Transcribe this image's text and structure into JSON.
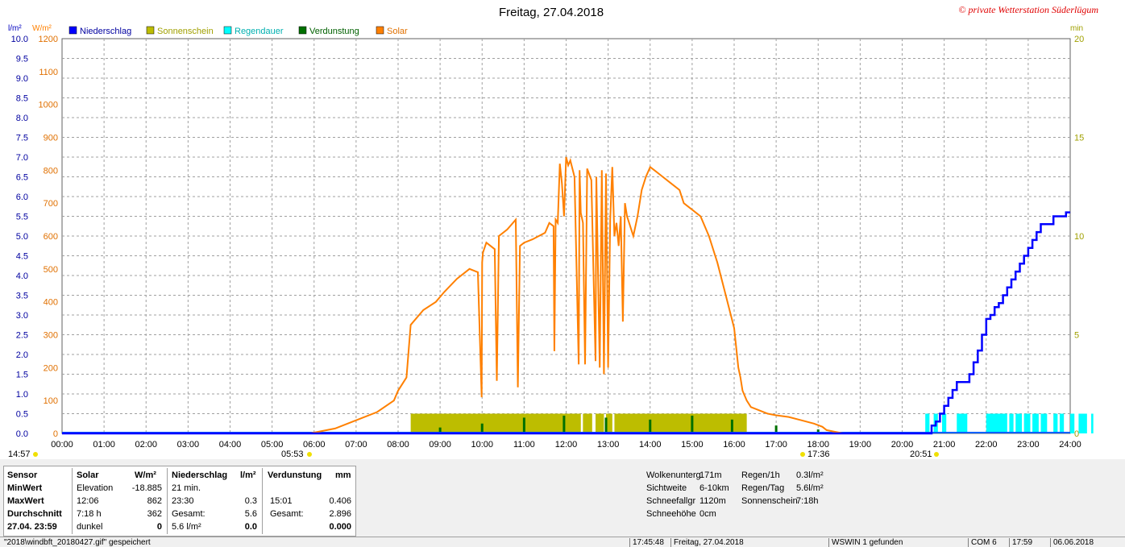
{
  "title": "Freitag, 27.04.2018",
  "copyright": "© private Wetterstation Süderlügum",
  "legend": [
    {
      "label": "Niederschlag",
      "color": "#0000ff"
    },
    {
      "label": "Sonnenschein",
      "color": "#bdbd00"
    },
    {
      "label": "Regendauer",
      "color": "#00ffff"
    },
    {
      "label": "Verdunstung",
      "color": "#007000"
    },
    {
      "label": "Solar",
      "color": "#ff8000"
    }
  ],
  "axis_units": {
    "rain": "l/m²",
    "solar": "W/m²",
    "minutes": "min"
  },
  "sun_markers": {
    "first": "14:57",
    "sunrise": "05:53",
    "sunset": "17:36",
    "last": "20:51"
  },
  "chart_data": {
    "type": "line",
    "title": "Freitag, 27.04.2018",
    "x_ticks": [
      "00:00",
      "01:00",
      "02:00",
      "03:00",
      "04:00",
      "05:00",
      "06:00",
      "07:00",
      "08:00",
      "09:00",
      "10:00",
      "11:00",
      "12:00",
      "13:00",
      "14:00",
      "15:00",
      "16:00",
      "17:00",
      "18:00",
      "19:00",
      "20:00",
      "21:00",
      "22:00",
      "23:00",
      "24:00"
    ],
    "xlim": [
      0,
      24
    ],
    "axes": {
      "rain": {
        "unit": "l/m²",
        "ylim": [
          0,
          10
        ],
        "ticks": [
          "0.0",
          "0.5",
          "1.0",
          "1.5",
          "2.0",
          "2.5",
          "3.0",
          "3.5",
          "4.0",
          "4.5",
          "5.0",
          "5.5",
          "6.0",
          "6.5",
          "7.0",
          "7.5",
          "8.0",
          "8.5",
          "9.0",
          "9.5",
          "10.0"
        ]
      },
      "solar": {
        "unit": "W/m²",
        "ylim": [
          0,
          1200
        ],
        "ticks": [
          "0",
          "100",
          "200",
          "300",
          "400",
          "500",
          "600",
          "700",
          "800",
          "900",
          "1000",
          "1100",
          "1200"
        ]
      },
      "minutes": {
        "unit": "min",
        "ylim": [
          0,
          20
        ],
        "ticks": [
          "0",
          "5",
          "10",
          "15",
          "20"
        ]
      }
    },
    "series": [
      {
        "name": "Solar",
        "axis": "solar",
        "color": "#ff8000",
        "x": [
          5.9,
          6.5,
          7.0,
          7.5,
          7.9,
          8.0,
          8.2,
          8.3,
          8.6,
          8.9,
          9.1,
          9.4,
          9.7,
          9.9,
          9.99,
          10.0,
          10.02,
          10.1,
          10.3,
          10.35,
          10.4,
          10.6,
          10.8,
          10.85,
          10.9,
          11.0,
          11.2,
          11.5,
          11.6,
          11.7,
          11.72,
          11.75,
          11.8,
          11.85,
          11.9,
          11.95,
          12.0,
          12.05,
          12.1,
          12.2,
          12.3,
          12.32,
          12.35,
          12.4,
          12.45,
          12.5,
          12.6,
          12.7,
          12.72,
          12.8,
          12.85,
          12.9,
          12.95,
          13.0,
          13.05,
          13.1,
          13.15,
          13.2,
          13.25,
          13.3,
          13.35,
          13.4,
          13.45,
          13.5,
          13.6,
          13.7,
          13.8,
          13.9,
          14.0,
          14.1,
          14.2,
          14.3,
          14.5,
          14.7,
          14.8,
          15.0,
          15.2,
          15.4,
          15.6,
          15.8,
          16.0,
          16.1,
          16.15,
          16.2,
          16.3,
          16.4,
          16.6,
          16.8,
          17.0,
          17.3,
          17.6,
          17.9,
          18.1,
          18.2,
          18.4,
          18.6,
          18.9,
          19.2,
          19.5,
          19.8,
          20.2,
          20.5
        ],
        "values": [
          0,
          15,
          40,
          65,
          100,
          130,
          170,
          330,
          375,
          400,
          430,
          470,
          500,
          490,
          110,
          520,
          550,
          580,
          560,
          160,
          600,
          620,
          650,
          140,
          570,
          580,
          590,
          610,
          640,
          630,
          250,
          650,
          640,
          820,
          760,
          660,
          840,
          815,
          830,
          780,
          210,
          800,
          670,
          640,
          210,
          805,
          770,
          220,
          780,
          200,
          800,
          180,
          790,
          200,
          650,
          810,
          600,
          640,
          570,
          660,
          340,
          700,
          660,
          640,
          600,
          660,
          740,
          780,
          810,
          800,
          790,
          780,
          760,
          740,
          700,
          680,
          660,
          600,
          520,
          420,
          320,
          200,
          170,
          130,
          100,
          80,
          70,
          60,
          55,
          50,
          40,
          30,
          20,
          10,
          5,
          0,
          0,
          0,
          0,
          0,
          0,
          0
        ]
      },
      {
        "name": "Niederschlag",
        "axis": "rain",
        "color": "#0000ff",
        "x": [
          0,
          20.6,
          20.7,
          20.8,
          20.9,
          21.0,
          21.1,
          21.2,
          21.3,
          21.5,
          21.6,
          21.7,
          21.8,
          21.9,
          22.0,
          22.1,
          22.2,
          22.3,
          22.4,
          22.5,
          22.6,
          22.7,
          22.8,
          22.9,
          23.0,
          23.1,
          23.2,
          23.3,
          23.4,
          23.5,
          23.6,
          23.7,
          23.8,
          23.9,
          24.0
        ],
        "values": [
          0,
          0,
          0.2,
          0.3,
          0.5,
          0.7,
          0.9,
          1.1,
          1.3,
          1.3,
          1.5,
          1.8,
          2.1,
          2.5,
          2.9,
          3.0,
          3.2,
          3.3,
          3.5,
          3.7,
          3.9,
          4.1,
          4.3,
          4.5,
          4.7,
          4.9,
          5.1,
          5.3,
          5.3,
          5.3,
          5.5,
          5.5,
          5.5,
          5.6,
          5.6
        ]
      },
      {
        "name": "Sonnenschein",
        "axis": "minutes",
        "color": "#bdbd00",
        "intervals": [
          [
            8.3,
            12.35
          ],
          [
            12.4,
            12.62
          ],
          [
            12.7,
            12.9
          ],
          [
            12.95,
            13.1
          ],
          [
            13.15,
            16.3
          ]
        ],
        "level": 1
      },
      {
        "name": "Regendauer",
        "axis": "minutes",
        "color": "#00ffff",
        "intervals": [
          [
            20.55,
            20.65
          ],
          [
            20.75,
            20.85
          ],
          [
            20.95,
            21.05
          ],
          [
            21.3,
            21.55
          ],
          [
            22.0,
            22.5
          ],
          [
            22.55,
            22.65
          ],
          [
            22.7,
            22.85
          ],
          [
            22.9,
            23.05
          ],
          [
            23.1,
            23.25
          ],
          [
            23.3,
            23.45
          ],
          [
            23.6,
            23.7
          ],
          [
            23.75,
            23.85
          ],
          [
            24.0,
            24.1
          ],
          [
            24.2,
            24.4
          ],
          [
            24.5,
            24.55
          ]
        ],
        "level": 1
      },
      {
        "name": "Verdunstung",
        "axis": "minutes",
        "color": "#007000",
        "x": [
          9.0,
          10.0,
          11.0,
          11.95,
          12.95,
          14.0,
          15.0,
          15.95,
          17.0,
          18.0
        ],
        "values": [
          0.3,
          0.5,
          0.8,
          0.9,
          0.8,
          0.7,
          0.9,
          0.7,
          0.4,
          0.2
        ]
      }
    ]
  },
  "stats": {
    "headers": [
      "Sensor",
      "Solar",
      "W/m²",
      "Niederschlag",
      "l/m²",
      "Verdunstung",
      "mm"
    ],
    "rows": [
      {
        "label": "MinWert",
        "solar_a": "Elevation",
        "solar_b": "-18.885",
        "rain_a": "21 min.",
        "rain_b": "",
        "evap_a": "",
        "evap_b": ""
      },
      {
        "label": "MaxWert",
        "solar_a": "12:06",
        "solar_b": "862",
        "rain_a": "23:30",
        "rain_b": "0.3",
        "evap_a": "15:01",
        "evap_b": "0.406"
      },
      {
        "label": "Durchschnitt",
        "solar_a": "7:18 h",
        "solar_b": "362",
        "rain_a": "Gesamt:",
        "rain_b": "5.6",
        "evap_a": "Gesamt:",
        "evap_b": "2.896"
      },
      {
        "label": "27.04.  23:59",
        "solar_a": "dunkel",
        "solar_b": "0",
        "rain_a": "5.6 l/m²",
        "rain_b": "0.0",
        "evap_a": "",
        "evap_b": "0.000"
      }
    ]
  },
  "conditions": {
    "col1": [
      [
        "Wolkenunterg",
        "171m"
      ],
      [
        "Sichtweite",
        "6-10km"
      ],
      [
        "Schneefallgr",
        "1120m"
      ],
      [
        "Schneehöhe",
        "0cm"
      ]
    ],
    "col2": [
      [
        "Regen/1h",
        "0.3l/m²"
      ],
      [
        "Regen/Tag",
        "5.6l/m²"
      ],
      [
        "Sonnenschein",
        "7:18h"
      ]
    ]
  },
  "statusbar": {
    "file": "\"2018\\windbft_20180427.gif\"  gespeichert",
    "time": "17:45:48",
    "date": "Freitag, 27.04.2018",
    "connection": "WSWIN 1 gefunden",
    "port": "COM 6",
    "clock": "17:59",
    "today": "06.06.2018"
  }
}
